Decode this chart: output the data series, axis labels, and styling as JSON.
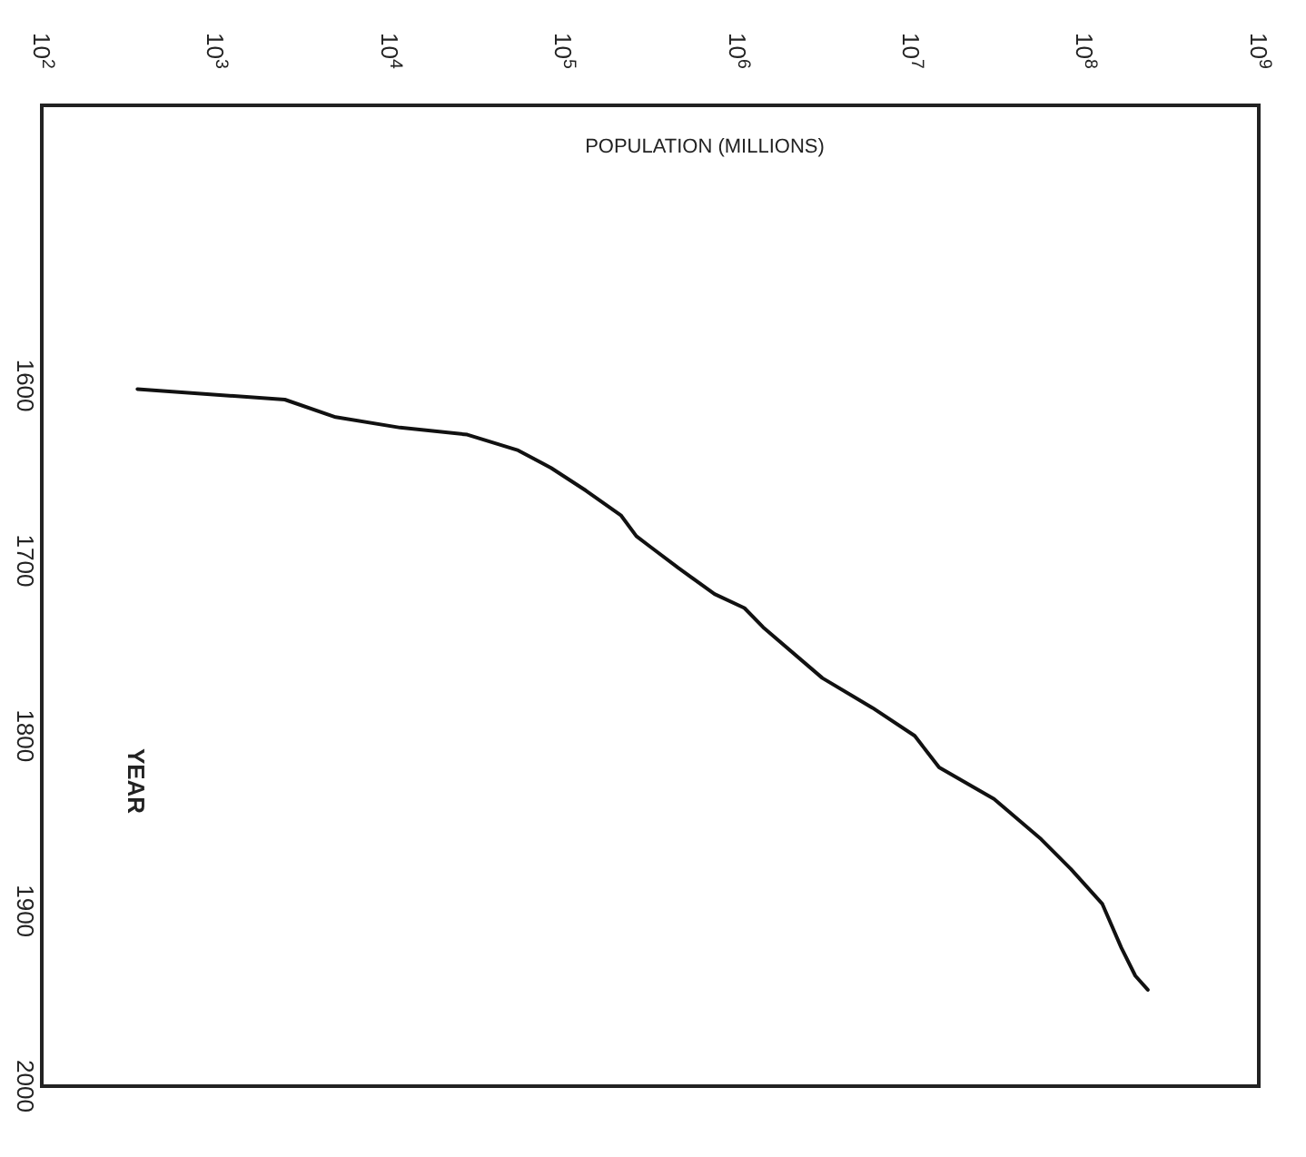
{
  "chart_data": {
    "type": "line",
    "xlabel": "POPULATION (MILLIONS)",
    "ylabel": "YEAR",
    "log": "x",
    "xlim": [
      100,
      1000000000
    ],
    "xticks": [
      {
        "value": 100,
        "label": "10$^{2}$"
      },
      {
        "value": 1000,
        "label": "10$^{3}$"
      },
      {
        "value": 10000,
        "label": "10$^{4}$"
      },
      {
        "value": 100000,
        "label": "10$^{5}$"
      },
      {
        "value": 1000000,
        "label": "10$^{6}$"
      },
      {
        "value": 10000000,
        "label": "10$^{7}$"
      },
      {
        "value": 100000000,
        "label": "10$^{8}$"
      },
      {
        "value": 1000000000,
        "label": "10$^{9}$"
      }
    ],
    "ylim": [
      2000,
      1440
    ],
    "yticks": [
      1600,
      1700,
      1800,
      1900,
      2000
    ],
    "grid": false,
    "x": [
      355,
      2500,
      4900,
      11500,
      28000,
      55000,
      85000,
      135000,
      214000,
      263000,
      316000,
      457000,
      741000,
      1100000,
      1410000,
      3090000,
      6000000,
      10500000,
      14500000,
      30000000,
      56000000,
      83000000,
      126000000,
      162000000,
      195000000,
      230000000
    ],
    "series": [
      {
        "color": "#111111",
        "values": [
          1602,
          1608,
          1618,
          1624,
          1628,
          1637,
          1647,
          1660,
          1674,
          1686,
          1692,
          1704,
          1719,
          1727,
          1738,
          1767,
          1784,
          1800,
          1818,
          1836,
          1859,
          1876,
          1896,
          1921,
          1937,
          1945
        ]
      }
    ]
  }
}
